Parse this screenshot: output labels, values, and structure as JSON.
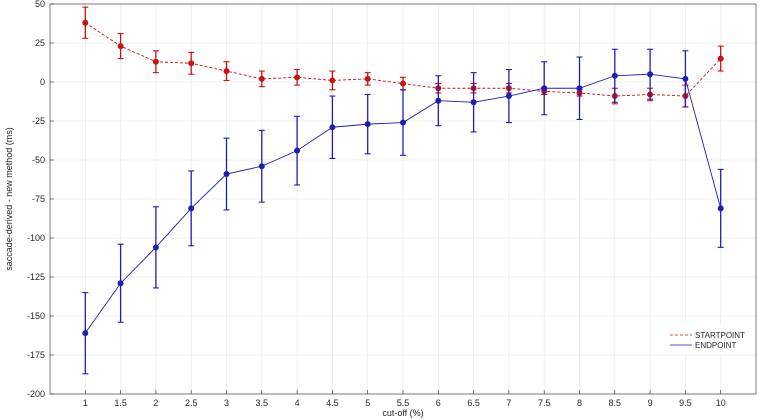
{
  "chart_data": {
    "type": "line",
    "xlabel": "cut-off (%)",
    "ylabel": "saccade-derived - new method (ms)",
    "xlim": [
      0.5,
      10.5
    ],
    "ylim": [
      -200,
      50
    ],
    "x_ticks": [
      1,
      1.5,
      2,
      2.5,
      3,
      3.5,
      4,
      4.5,
      5,
      5.5,
      6,
      6.5,
      7,
      7.5,
      8,
      8.5,
      9,
      9.5,
      10
    ],
    "y_ticks": [
      50,
      25,
      0,
      -25,
      -50,
      -75,
      -100,
      -125,
      -150,
      -175,
      -200
    ],
    "grid": true,
    "legend_position": "bottom-right",
    "x": [
      1,
      1.5,
      2,
      2.5,
      3,
      3.5,
      4,
      4.5,
      5,
      5.5,
      6,
      6.5,
      7,
      7.5,
      8,
      8.5,
      9,
      9.5,
      10
    ],
    "series": [
      {
        "name": "STARTPOINT",
        "color": "#cc1111",
        "line_style": "dashed",
        "values": [
          38,
          23,
          13,
          12,
          7,
          2,
          3,
          1,
          2,
          -1,
          -4,
          -4,
          -4,
          -6,
          -7,
          -9,
          -8,
          -9,
          15
        ],
        "error": [
          10,
          8,
          7,
          7,
          6,
          5,
          5,
          6,
          4,
          4,
          3,
          3,
          3,
          2,
          2,
          5,
          4,
          7,
          8
        ]
      },
      {
        "name": "ENDPOINT",
        "color": "#1e1eb4",
        "line_style": "solid",
        "values": [
          -161,
          -129,
          -106,
          -81,
          -59,
          -54,
          -44,
          -29,
          -27,
          -26,
          -12,
          -13,
          -9,
          -4,
          -4,
          4,
          5,
          2,
          -81
        ],
        "error": [
          26,
          25,
          26,
          24,
          23,
          23,
          22,
          20,
          19,
          21,
          16,
          19,
          17,
          17,
          20,
          17,
          16,
          18,
          25
        ]
      }
    ]
  }
}
